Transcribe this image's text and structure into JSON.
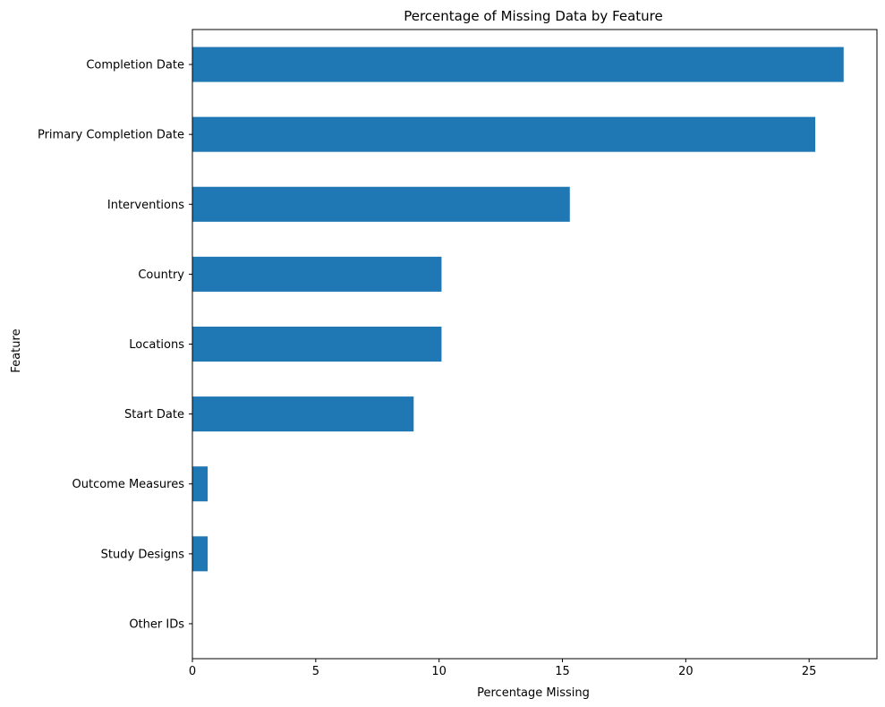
{
  "chart_data": {
    "type": "bar",
    "orientation": "horizontal",
    "title": "Percentage of Missing Data by Feature",
    "xlabel": "Percentage Missing",
    "ylabel": "Feature",
    "categories": [
      "Completion Date",
      "Primary Completion Date",
      "Interventions",
      "Country",
      "Locations",
      "Start Date",
      "Outcome Measures",
      "Study Designs",
      "Other IDs"
    ],
    "values": [
      26.4,
      25.25,
      15.3,
      10.1,
      10.1,
      8.97,
      0.62,
      0.62,
      0.0
    ],
    "xlim": [
      0,
      27.75
    ],
    "xticks": [
      0,
      5,
      10,
      15,
      20,
      25
    ],
    "grid": false,
    "legend": "none",
    "bar_color": "#1f77b4"
  }
}
